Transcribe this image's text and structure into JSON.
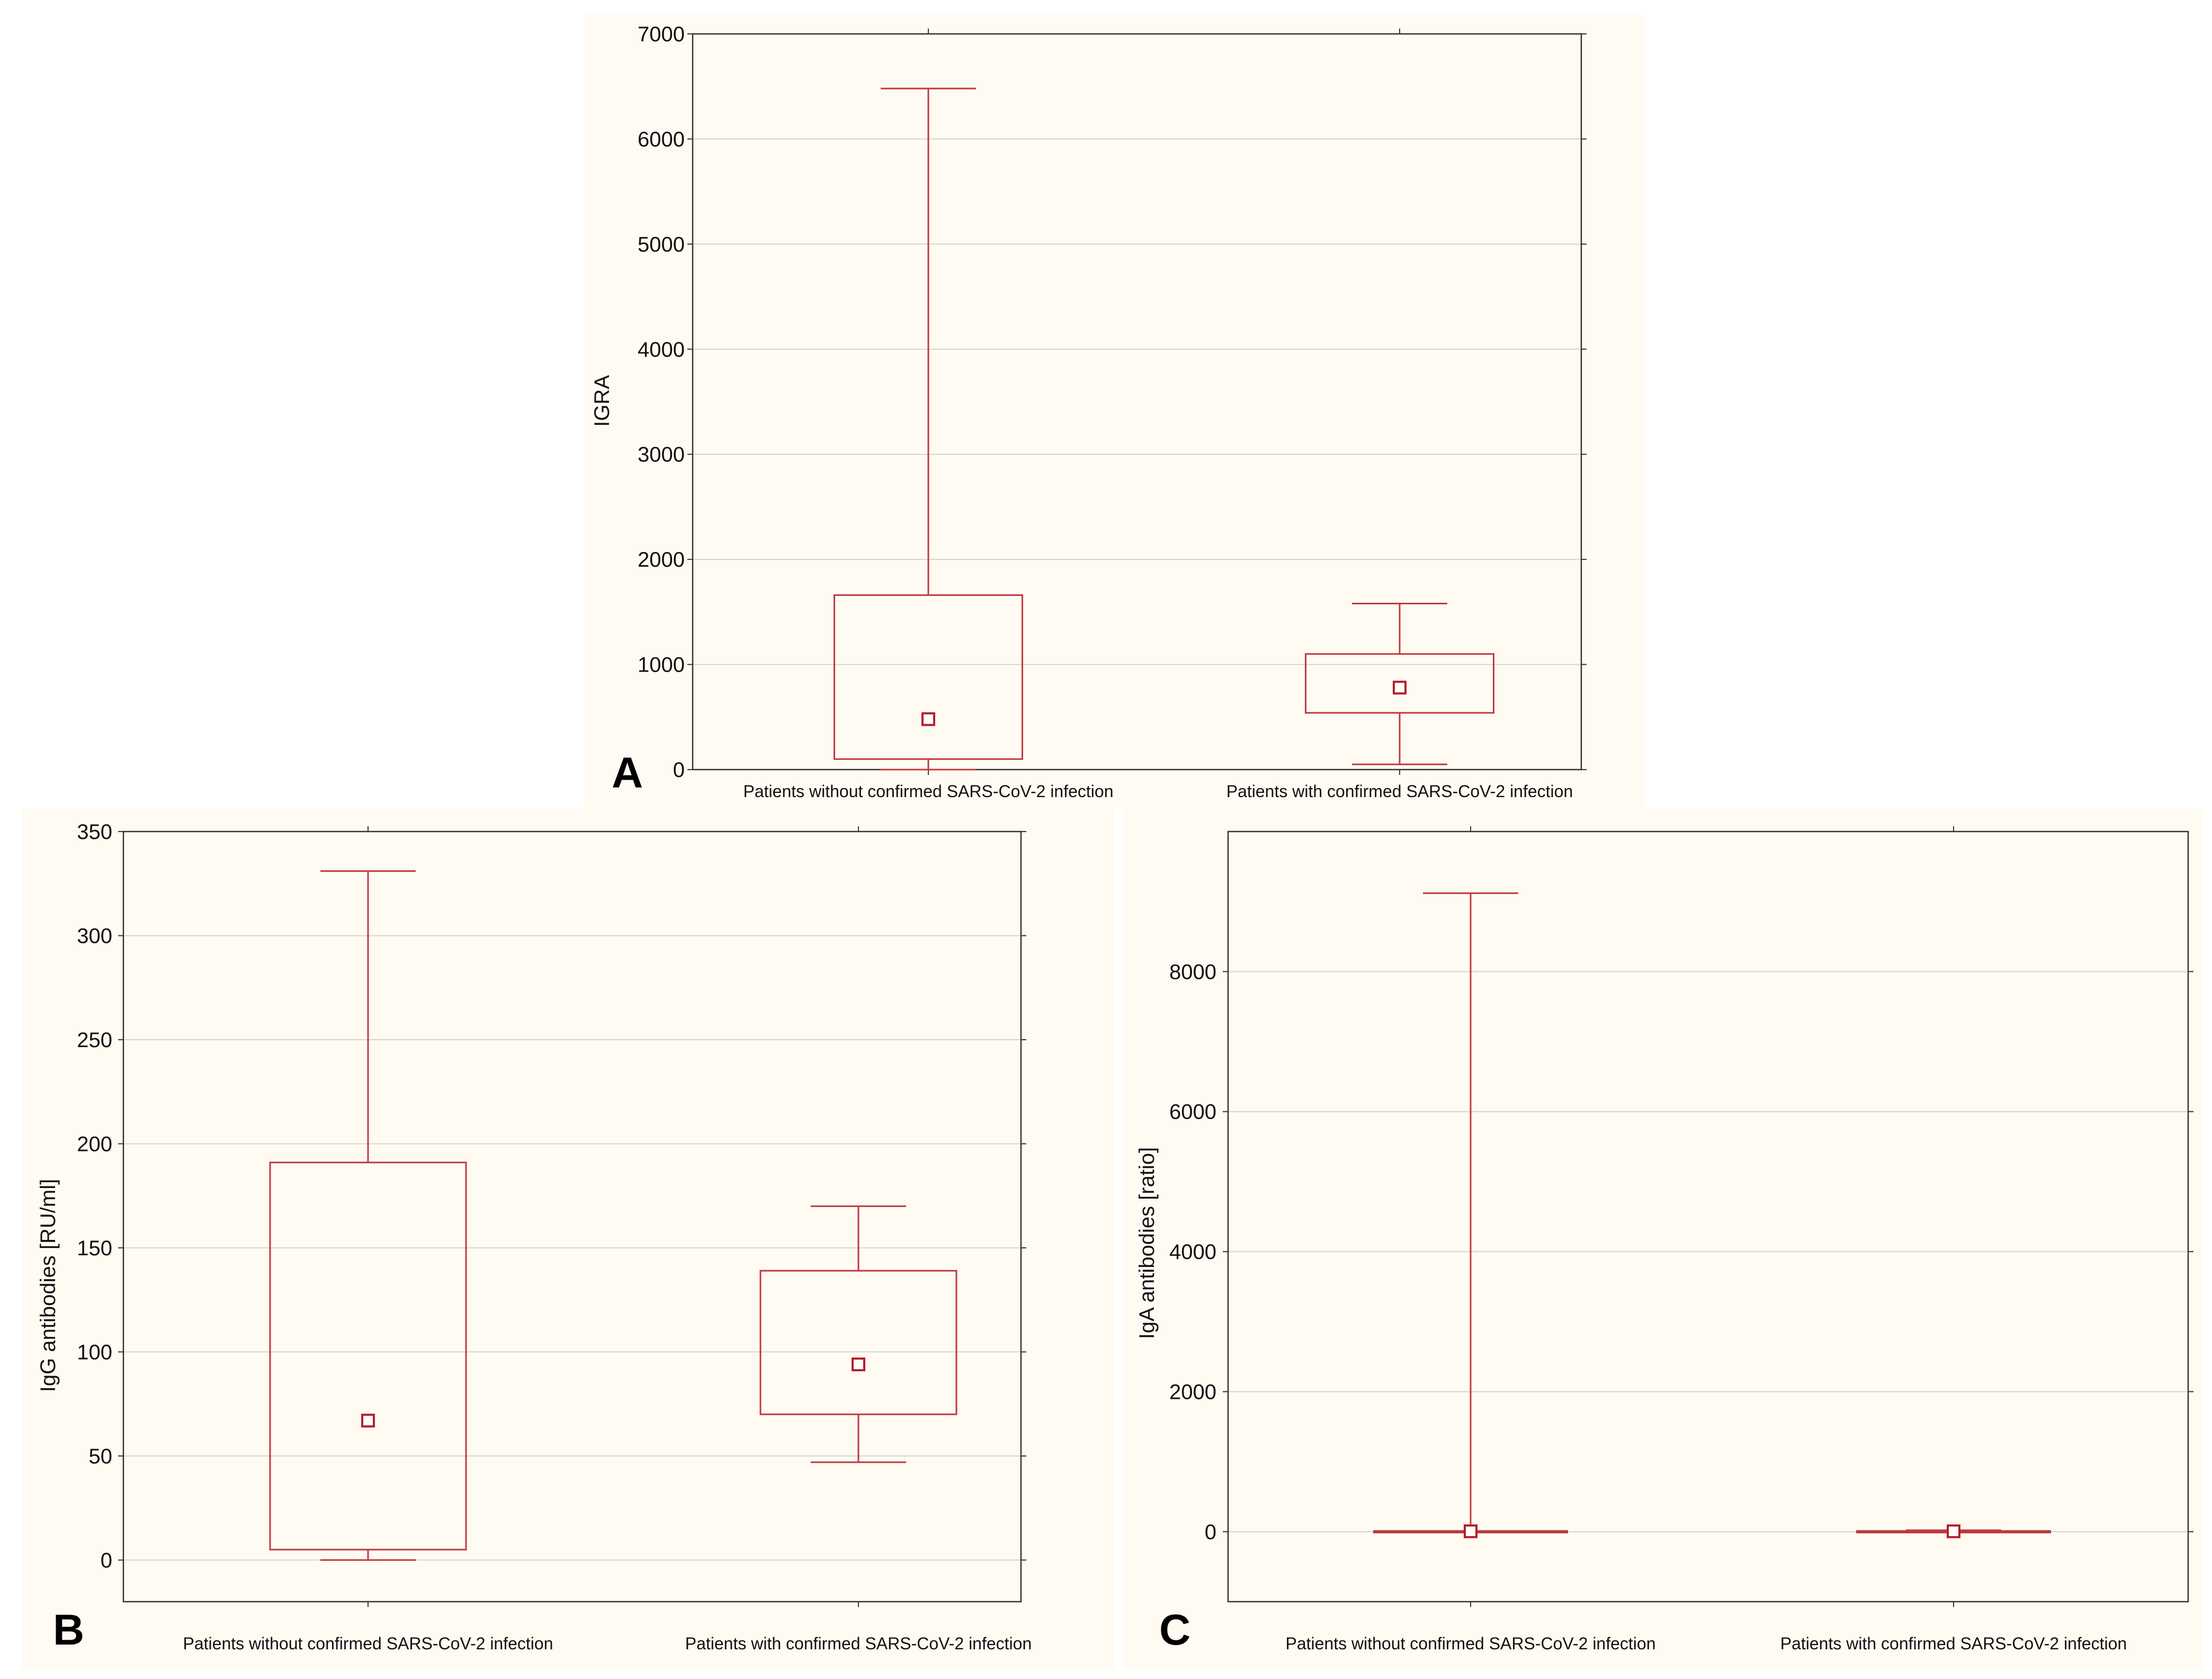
{
  "colors": {
    "box": "#c0393f",
    "grid": "#d4d4d4",
    "panel_bg": "#fffbf2"
  },
  "chart_data": [
    {
      "id": "A",
      "type": "box",
      "panel_label": "A",
      "ylabel": "IGRA",
      "ylim": [
        0,
        7000
      ],
      "yticks": [
        0,
        1000,
        2000,
        3000,
        4000,
        5000,
        6000,
        7000
      ],
      "categories": [
        "Patients without confirmed SARS-CoV-2 infection",
        "Patients with confirmed SARS-CoV-2 infection"
      ],
      "boxes": [
        {
          "min": 0,
          "q1": 100,
          "median": 480,
          "q3": 1660,
          "max": 6480
        },
        {
          "min": 50,
          "q1": 540,
          "median": 780,
          "q3": 1100,
          "max": 1580
        }
      ]
    },
    {
      "id": "B",
      "type": "box",
      "panel_label": "B",
      "ylabel": "IgG antibodies [RU/ml]",
      "ylim": [
        -20,
        350
      ],
      "yticks": [
        0,
        50,
        100,
        150,
        200,
        250,
        300,
        350
      ],
      "categories": [
        "Patients without confirmed SARS-CoV-2 infection",
        "Patients with confirmed SARS-CoV-2 infection"
      ],
      "boxes": [
        {
          "min": 0,
          "q1": 5,
          "median": 67,
          "q3": 191,
          "max": 331
        },
        {
          "min": 47,
          "q1": 70,
          "median": 94,
          "q3": 139,
          "max": 170
        }
      ]
    },
    {
      "id": "C",
      "type": "box",
      "panel_label": "C",
      "ylabel": "IgA antibodies [ratio]",
      "ylim": [
        -1000,
        10000
      ],
      "yticks": [
        0,
        2000,
        4000,
        6000,
        8000
      ],
      "categories": [
        "Patients without confirmed SARS-CoV-2 infection",
        "Patients with confirmed SARS-CoV-2 infection"
      ],
      "boxes": [
        {
          "min": 0,
          "q1": 0,
          "median": 5,
          "q3": 10,
          "max": 9120
        },
        {
          "min": 0,
          "q1": 0,
          "median": 5,
          "q3": 10,
          "max": 20
        }
      ]
    }
  ]
}
